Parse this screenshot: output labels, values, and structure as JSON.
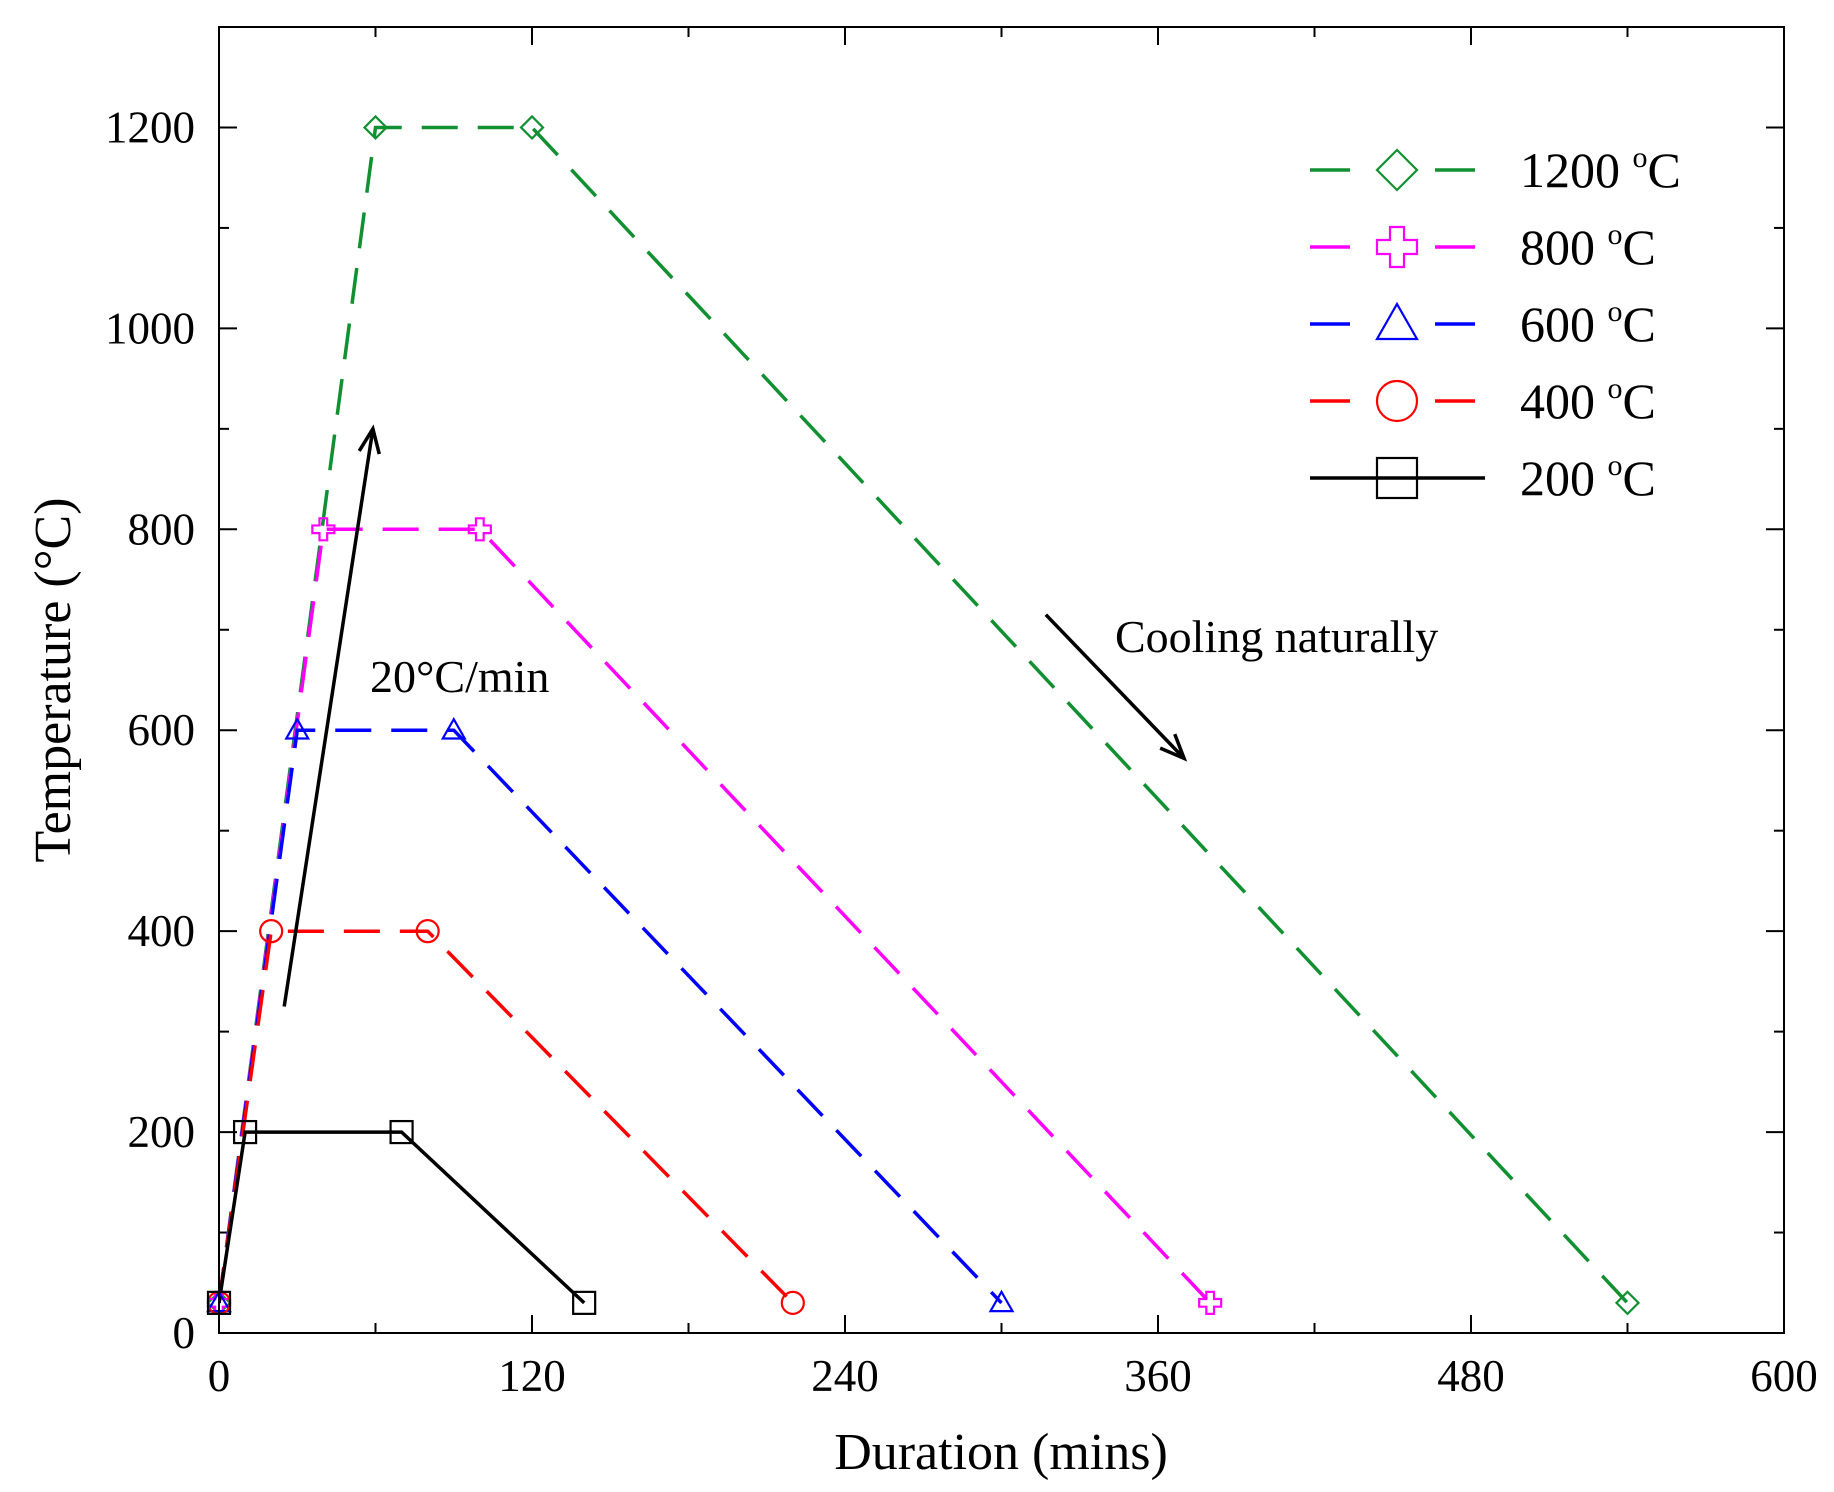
{
  "chart_data": {
    "type": "line",
    "title": "",
    "xlabel": "Duration (mins)",
    "ylabel": "Temperature (°C)",
    "xlim": [
      0,
      600
    ],
    "ylim": [
      0,
      1300
    ],
    "x_ticks": [
      0,
      120,
      240,
      360,
      480,
      600
    ],
    "y_ticks": [
      0,
      200,
      400,
      600,
      800,
      1000,
      1200
    ],
    "x_tick_labels": [
      "0",
      "120",
      "240",
      "360",
      "480",
      "600"
    ],
    "y_tick_labels": [
      "0",
      "200",
      "400",
      "600",
      "800",
      "1000",
      "1200"
    ],
    "grid": false,
    "legend_position": "top-right",
    "series": [
      {
        "name": "1200 °C",
        "label_main": "1200 ",
        "label_sup": "o",
        "label_unit": "C",
        "color": "#109030",
        "dash": "dashed",
        "marker": "diamond",
        "points": [
          [
            0,
            30
          ],
          [
            60,
            1200
          ],
          [
            120,
            1200
          ],
          [
            540,
            30
          ]
        ]
      },
      {
        "name": "800 °C",
        "label_main": "800 ",
        "label_sup": "o",
        "label_unit": "C",
        "color": "#ff00ff",
        "dash": "dashed",
        "marker": "cross",
        "points": [
          [
            0,
            30
          ],
          [
            40,
            800
          ],
          [
            100,
            800
          ],
          [
            380,
            30
          ]
        ]
      },
      {
        "name": "600 °C",
        "label_main": "600 ",
        "label_sup": "o",
        "label_unit": "C",
        "color": "#0000ff",
        "dash": "dashed",
        "marker": "triangle",
        "points": [
          [
            0,
            30
          ],
          [
            30,
            600
          ],
          [
            90,
            600
          ],
          [
            300,
            30
          ]
        ]
      },
      {
        "name": "400 °C",
        "label_main": "400 ",
        "label_sup": "o",
        "label_unit": "C",
        "color": "#ff0000",
        "dash": "dashed",
        "marker": "circle",
        "points": [
          [
            0,
            30
          ],
          [
            20,
            400
          ],
          [
            80,
            400
          ],
          [
            220,
            30
          ]
        ]
      },
      {
        "name": "200 °C",
        "label_main": "200 ",
        "label_sup": "o",
        "label_unit": "C",
        "color": "#000000",
        "dash": "solid",
        "marker": "square",
        "points": [
          [
            0,
            30
          ],
          [
            10,
            200
          ],
          [
            70,
            200
          ],
          [
            140,
            30
          ]
        ]
      }
    ],
    "annotations": [
      {
        "text": "20°C/min",
        "arrow_from": [
          25,
          325
        ],
        "arrow_to": [
          59,
          900
        ]
      },
      {
        "text": "Cooling naturally",
        "arrow_from": [
          317,
          715
        ],
        "arrow_to": [
          370,
          572
        ]
      }
    ]
  }
}
